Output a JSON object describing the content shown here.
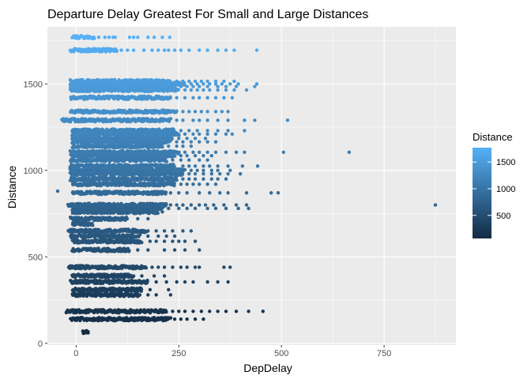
{
  "chart_data": {
    "type": "scatter",
    "title": "Departure Delay Greatest For Small and Large Distances",
    "xlabel": "DepDelay",
    "ylabel": "Distance",
    "xlim": [
      -70,
      925
    ],
    "ylim": [
      -10,
      1830
    ],
    "x_ticks": [
      0,
      250,
      500,
      750
    ],
    "y_ticks": [
      0,
      500,
      1000,
      1500
    ],
    "grid": true,
    "background": "#ebebeb",
    "color_scale": {
      "variable": "Distance",
      "low_color": "#132b43",
      "high_color": "#56b1f7",
      "min": 67,
      "max": 1770,
      "breaks": [
        500,
        1000,
        1500
      ]
    },
    "legend": {
      "title": "Distance",
      "position": "right"
    },
    "clusters": [
      {
        "distance": 67,
        "x_min": 15,
        "x_max": 30
      },
      {
        "distance": 140,
        "x_min": -15,
        "x_max": 230,
        "extra_x": [
          240,
          255,
          270,
          290,
          310
        ]
      },
      {
        "distance": 185,
        "x_min": -25,
        "x_max": 220,
        "extra_x": [
          235,
          250,
          265,
          285,
          305,
          325,
          345,
          365,
          390,
          420,
          455
        ]
      },
      {
        "distance": 280,
        "x_min": -10,
        "x_max": 155,
        "extra_x": [
          175,
          195,
          230
        ]
      },
      {
        "distance": 310,
        "x_min": -10,
        "x_max": 160,
        "extra_x": [
          180,
          225
        ]
      },
      {
        "distance": 355,
        "x_min": -15,
        "x_max": 175,
        "extra_x": [
          195,
          220,
          245,
          265,
          285,
          320,
          345,
          370
        ]
      },
      {
        "distance": 390,
        "x_min": -10,
        "x_max": 140,
        "extra_x": [
          160,
          190,
          215
        ]
      },
      {
        "distance": 440,
        "x_min": -20,
        "x_max": 170,
        "extra_x": [
          185,
          200,
          215,
          235,
          255,
          270,
          290,
          300,
          360,
          375
        ]
      },
      {
        "distance": 540,
        "x_min": -10,
        "x_max": 130,
        "extra_x": [
          150,
          175,
          215,
          240,
          265,
          300
        ]
      },
      {
        "distance": 590,
        "x_min": -10,
        "x_max": 160,
        "extra_x": [
          180,
          195,
          215,
          235,
          250,
          265,
          290
        ]
      },
      {
        "distance": 620,
        "x_min": -15,
        "x_max": 155,
        "extra_x": [
          175,
          200,
          220,
          240
        ]
      },
      {
        "distance": 650,
        "x_min": -20,
        "x_max": 175,
        "extra_x": [
          195,
          215,
          235,
          260,
          280
        ]
      },
      {
        "distance": 690,
        "x_min": -10,
        "x_max": 40,
        "extra_x": []
      },
      {
        "distance": 720,
        "x_min": -15,
        "x_max": 125,
        "extra_x": [
          150,
          175
        ]
      },
      {
        "distance": 760,
        "x_min": -10,
        "x_max": 200,
        "extra_x": [
          210
        ]
      },
      {
        "distance": 780,
        "x_min": -10,
        "x_max": 210,
        "extra_x": [
          225,
          250,
          270,
          290,
          320,
          340,
          365,
          395,
          420
        ]
      },
      {
        "distance": 800,
        "x_min": -20,
        "x_max": 220,
        "extra_x": [
          230,
          245,
          260,
          280,
          300,
          315,
          335,
          360,
          390,
          415,
          875
        ]
      },
      {
        "distance": 870,
        "x_min": -10,
        "x_max": 220,
        "extra_x": [
          230,
          250,
          270,
          300,
          325,
          350,
          370,
          415,
          475,
          492
        ]
      },
      {
        "distance": 920,
        "x_min": -10,
        "x_max": 240,
        "extra_x": [
          255,
          270,
          285,
          300,
          320,
          340
        ]
      },
      {
        "distance": 950,
        "x_min": -15,
        "x_max": 245,
        "extra_x": [
          260,
          275,
          290,
          310,
          330,
          345,
          365
        ]
      },
      {
        "distance": 980,
        "x_min": -15,
        "x_max": 260,
        "extra_x": [
          275,
          290,
          310,
          330,
          350,
          370,
          400
        ]
      },
      {
        "distance": 1000,
        "x_min": -15,
        "x_max": 265,
        "extra_x": [
          280,
          295,
          310,
          330,
          345,
          375
        ]
      },
      {
        "distance": 1025,
        "x_min": -15,
        "x_max": 240,
        "extra_x": [
          260,
          275,
          290,
          310,
          325,
          345,
          370,
          405,
          442
        ]
      },
      {
        "distance": 1060,
        "x_min": -15,
        "x_max": 220,
        "extra_x": [
          235,
          255,
          275,
          300,
          320
        ]
      },
      {
        "distance": 1085,
        "x_min": -15,
        "x_max": 240,
        "extra_x": [
          255,
          270,
          290,
          310,
          330
        ]
      },
      {
        "distance": 1105,
        "x_min": -15,
        "x_max": 250,
        "extra_x": [
          265,
          285,
          300,
          320,
          340,
          365,
          390,
          410,
          505,
          665
        ]
      },
      {
        "distance": 1140,
        "x_min": -10,
        "x_max": 210,
        "extra_x": [
          225,
          245,
          260,
          280
        ]
      },
      {
        "distance": 1165,
        "x_min": -10,
        "x_max": 230,
        "extra_x": [
          245,
          260,
          280,
          300,
          320,
          340
        ]
      },
      {
        "distance": 1185,
        "x_min": -10,
        "x_max": 235,
        "extra_x": [
          250,
          270,
          290,
          315
        ]
      },
      {
        "distance": 1210,
        "x_min": -10,
        "x_max": 250,
        "extra_x": [
          265,
          285,
          300,
          320,
          340,
          365,
          380
        ]
      },
      {
        "distance": 1230,
        "x_min": -10,
        "x_max": 240,
        "extra_x": [
          255,
          275,
          295,
          320,
          345,
          370,
          410
        ]
      },
      {
        "distance": 1290,
        "x_min": -35,
        "x_max": 230,
        "extra_x": [
          245,
          260,
          285,
          300,
          320,
          345,
          370,
          410,
          435,
          515
        ]
      },
      {
        "distance": 1340,
        "x_min": -15,
        "x_max": 245,
        "extra_x": [
          260,
          275,
          290,
          305,
          320,
          340,
          355,
          370
        ]
      },
      {
        "distance": 1420,
        "x_min": -15,
        "x_max": 230,
        "extra_x": [
          245,
          265,
          285,
          300,
          320,
          340,
          360,
          380
        ]
      },
      {
        "distance": 1465,
        "x_min": -15,
        "x_max": 250,
        "extra_x": [
          265,
          280,
          295,
          310,
          325,
          345,
          365,
          385,
          415
        ]
      },
      {
        "distance": 1485,
        "x_min": -15,
        "x_max": 240,
        "extra_x": [
          255,
          270,
          285,
          300,
          320,
          345,
          365,
          390,
          435
        ]
      },
      {
        "distance": 1500,
        "x_min": -15,
        "x_max": 265,
        "extra_x": [
          280,
          295,
          310,
          325,
          340,
          355,
          375,
          395,
          440
        ]
      },
      {
        "distance": 1515,
        "x_min": -15,
        "x_max": 230,
        "extra_x": [
          245,
          260,
          275,
          290,
          305,
          320,
          340,
          360,
          385
        ]
      },
      {
        "distance": 1695,
        "x_min": -15,
        "x_max": 100,
        "extra_x": [
          110,
          125,
          140,
          165,
          185,
          200,
          215,
          225,
          240,
          255,
          275,
          300,
          320,
          345,
          365,
          385,
          440
        ]
      },
      {
        "distance": 1770,
        "x_min": -10,
        "x_max": 45,
        "extra_x": [
          55,
          70,
          80,
          90,
          95,
          130,
          140,
          150,
          175,
          190,
          210,
          228
        ]
      }
    ],
    "outliers_note": ""
  }
}
